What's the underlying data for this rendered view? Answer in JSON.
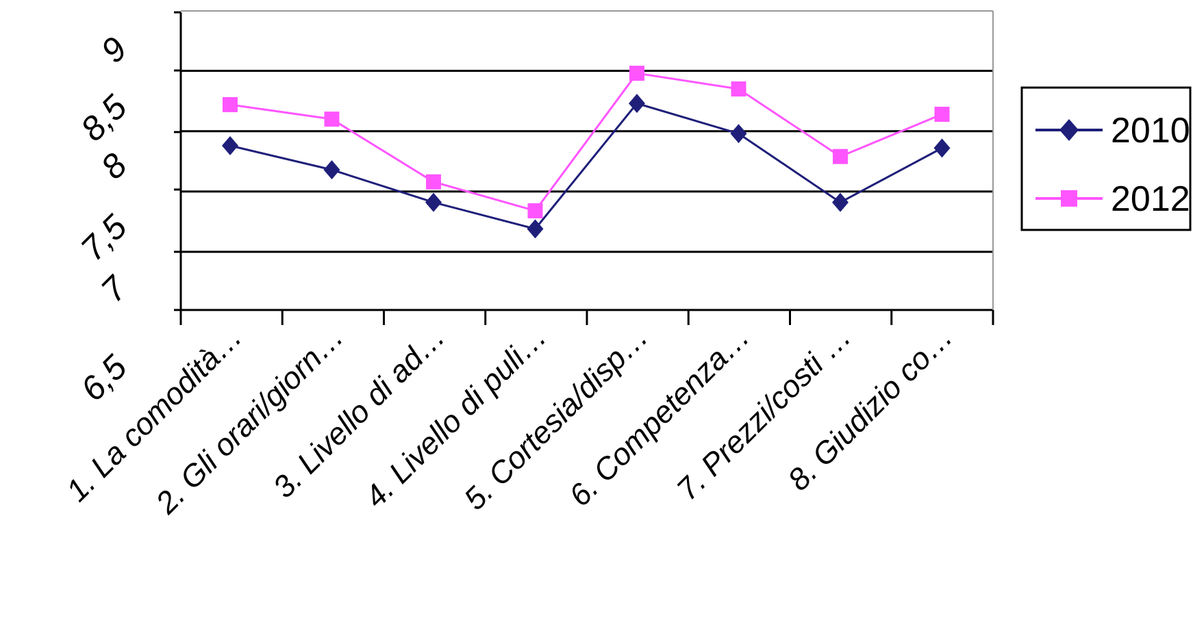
{
  "chart_data": {
    "type": "line",
    "categories": [
      "1. La comodità…",
      "2. Gli orari/giorn…",
      "3. Livello di ad…",
      "4. Livello di puli…",
      "5. Cortesia/disp…",
      "6. Competenza…",
      "7. Prezzi/costi …",
      "8. Giudizio co…"
    ],
    "series": [
      {
        "name": "2010",
        "values": [
          8.38,
          8.18,
          7.91,
          7.69,
          8.73,
          8.48,
          7.91,
          8.36
        ]
      },
      {
        "name": "2012",
        "values": [
          8.72,
          8.6,
          8.08,
          7.84,
          8.98,
          8.85,
          8.29,
          8.64
        ]
      }
    ],
    "y_tick_labels": [
      "6,5",
      "7",
      "7,5",
      "8",
      "8,5",
      "9"
    ],
    "ylim": [
      7.0,
      9.5
    ],
    "gridlines": [
      7.5,
      8.0,
      8.5,
      9.0
    ],
    "grid": true,
    "legend": "right",
    "title": "",
    "xlabel": "",
    "ylabel": "",
    "colors": {
      "2010": "#1f1f7a",
      "2012": "#ff55ff"
    }
  }
}
